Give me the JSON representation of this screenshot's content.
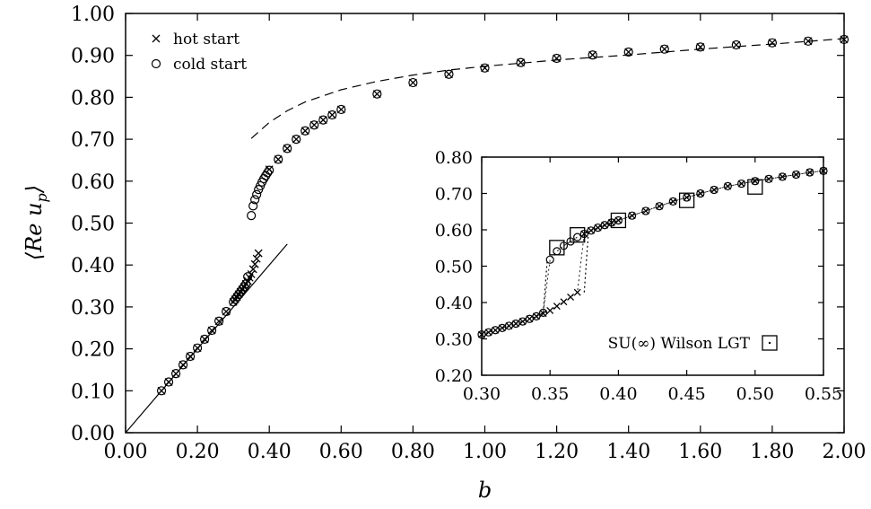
{
  "chart_data": [
    {
      "type": "scatter",
      "title": "",
      "xlabel": "b",
      "ylabel": "⟨Re u_p⟩",
      "ylabel_main": "⟨Re u",
      "ylabel_sub": "p",
      "ylabel_close": "⟩",
      "xlim": [
        0.0,
        2.0
      ],
      "ylim": [
        0.0,
        1.0
      ],
      "xticks": [
        "0.00",
        "0.20",
        "0.40",
        "0.60",
        "0.80",
        "1.00",
        "1.20",
        "1.40",
        "1.60",
        "1.80",
        "2.00"
      ],
      "yticks": [
        "0.00",
        "0.10",
        "0.20",
        "0.30",
        "0.40",
        "0.50",
        "0.60",
        "0.70",
        "0.80",
        "0.90",
        "1.00"
      ],
      "grid": false,
      "legend_position": "top-left",
      "series": [
        {
          "name": "hot start",
          "marker": "x",
          "x": [
            0.1,
            0.12,
            0.14,
            0.16,
            0.18,
            0.2,
            0.22,
            0.24,
            0.26,
            0.28,
            0.3,
            0.305,
            0.31,
            0.315,
            0.32,
            0.325,
            0.33,
            0.335,
            0.34,
            0.345,
            0.35,
            0.355,
            0.36,
            0.365,
            0.37,
            0.4,
            0.425,
            0.45,
            0.475,
            0.5,
            0.525,
            0.55,
            0.575,
            0.6,
            0.7,
            0.8,
            0.9,
            1.0,
            1.1,
            1.2,
            1.3,
            1.4,
            1.5,
            1.6,
            1.7,
            1.8,
            1.9,
            2.0
          ],
          "y": [
            0.1,
            0.121,
            0.141,
            0.162,
            0.182,
            0.202,
            0.223,
            0.244,
            0.266,
            0.289,
            0.312,
            0.318,
            0.324,
            0.33,
            0.336,
            0.342,
            0.348,
            0.355,
            0.362,
            0.37,
            0.378,
            0.39,
            0.402,
            0.415,
            0.428,
            0.628,
            0.652,
            0.678,
            0.7,
            0.72,
            0.734,
            0.746,
            0.758,
            0.771,
            0.808,
            0.835,
            0.855,
            0.87,
            0.883,
            0.893,
            0.901,
            0.908,
            0.915,
            0.92,
            0.925,
            0.93,
            0.934,
            0.938
          ]
        },
        {
          "name": "cold start",
          "marker": "circle",
          "x": [
            0.1,
            0.12,
            0.14,
            0.16,
            0.18,
            0.2,
            0.22,
            0.24,
            0.26,
            0.28,
            0.3,
            0.305,
            0.31,
            0.315,
            0.32,
            0.325,
            0.33,
            0.335,
            0.34,
            0.35,
            0.355,
            0.36,
            0.365,
            0.37,
            0.375,
            0.38,
            0.385,
            0.39,
            0.395,
            0.4,
            0.425,
            0.45,
            0.475,
            0.5,
            0.525,
            0.55,
            0.575,
            0.6,
            0.7,
            0.8,
            0.9,
            1.0,
            1.1,
            1.2,
            1.3,
            1.4,
            1.5,
            1.6,
            1.7,
            1.8,
            1.9,
            2.0
          ],
          "y": [
            0.1,
            0.121,
            0.141,
            0.162,
            0.182,
            0.202,
            0.223,
            0.244,
            0.266,
            0.289,
            0.312,
            0.318,
            0.324,
            0.33,
            0.336,
            0.342,
            0.348,
            0.355,
            0.372,
            0.518,
            0.541,
            0.556,
            0.568,
            0.58,
            0.589,
            0.598,
            0.606,
            0.613,
            0.62,
            0.626,
            0.652,
            0.678,
            0.7,
            0.72,
            0.734,
            0.746,
            0.758,
            0.771,
            0.808,
            0.835,
            0.855,
            0.87,
            0.883,
            0.893,
            0.901,
            0.908,
            0.915,
            0.92,
            0.925,
            0.93,
            0.934,
            0.938
          ]
        }
      ],
      "lines": [
        {
          "style": "dashed",
          "x": [
            0.35,
            0.4,
            0.45,
            0.5,
            0.6,
            0.7,
            0.8,
            0.9,
            1.0,
            1.2,
            1.4,
            1.6,
            1.8,
            2.0
          ],
          "y": [
            0.702,
            0.74,
            0.768,
            0.789,
            0.818,
            0.838,
            0.853,
            0.865,
            0.874,
            0.889,
            0.901,
            0.915,
            0.927,
            0.94
          ]
        },
        {
          "style": "solid",
          "x": [
            0.0,
            0.45
          ],
          "y": [
            0.0,
            0.45
          ]
        }
      ]
    },
    {
      "type": "scatter",
      "title": "",
      "xlim": [
        0.3,
        0.55
      ],
      "ylim": [
        0.2,
        0.8
      ],
      "xticks": [
        "0.30",
        "0.35",
        "0.40",
        "0.45",
        "0.50",
        "0.55"
      ],
      "yticks": [
        "0.20",
        "0.30",
        "0.40",
        "0.50",
        "0.60",
        "0.70",
        "0.80"
      ],
      "legend_position": "bottom-right",
      "legend_label": "SU(∞) Wilson LGT",
      "series": [
        {
          "name": "hot start",
          "marker": "x",
          "x": [
            0.3,
            0.305,
            0.31,
            0.315,
            0.32,
            0.325,
            0.33,
            0.335,
            0.34,
            0.345,
            0.35,
            0.355,
            0.36,
            0.365,
            0.37,
            0.375,
            0.38,
            0.385,
            0.39,
            0.395,
            0.4,
            0.41,
            0.42,
            0.43,
            0.44,
            0.45,
            0.46,
            0.47,
            0.48,
            0.49,
            0.5,
            0.51,
            0.52,
            0.53,
            0.54,
            0.55
          ],
          "y": [
            0.312,
            0.318,
            0.324,
            0.33,
            0.336,
            0.342,
            0.348,
            0.355,
            0.362,
            0.37,
            0.378,
            0.39,
            0.402,
            0.415,
            0.428,
            0.589,
            0.598,
            0.606,
            0.613,
            0.62,
            0.626,
            0.639,
            0.652,
            0.665,
            0.678,
            0.689,
            0.7,
            0.71,
            0.72,
            0.727,
            0.734,
            0.74,
            0.746,
            0.752,
            0.758,
            0.762
          ]
        },
        {
          "name": "cold start",
          "marker": "circle",
          "x": [
            0.3,
            0.305,
            0.31,
            0.315,
            0.32,
            0.325,
            0.33,
            0.335,
            0.34,
            0.345,
            0.35,
            0.355,
            0.36,
            0.365,
            0.37,
            0.375,
            0.38,
            0.385,
            0.39,
            0.395,
            0.4,
            0.41,
            0.42,
            0.43,
            0.44,
            0.45,
            0.46,
            0.47,
            0.48,
            0.49,
            0.5,
            0.51,
            0.52,
            0.53,
            0.54,
            0.55
          ],
          "y": [
            0.312,
            0.318,
            0.324,
            0.33,
            0.336,
            0.342,
            0.348,
            0.355,
            0.362,
            0.372,
            0.518,
            0.541,
            0.556,
            0.568,
            0.58,
            0.589,
            0.598,
            0.606,
            0.613,
            0.62,
            0.626,
            0.639,
            0.652,
            0.665,
            0.678,
            0.689,
            0.7,
            0.71,
            0.72,
            0.727,
            0.734,
            0.74,
            0.746,
            0.752,
            0.758,
            0.762
          ]
        },
        {
          "name": "SU(∞) Wilson LGT",
          "marker": "square",
          "x": [
            0.355,
            0.37,
            0.4,
            0.45,
            0.5
          ],
          "y": [
            0.551,
            0.586,
            0.626,
            0.681,
            0.718
          ]
        }
      ],
      "lines": [
        {
          "style": "dotted",
          "x": [
            0.345,
            0.348
          ],
          "y": [
            0.372,
            0.518
          ]
        },
        {
          "style": "dotted",
          "x": [
            0.375,
            0.378
          ],
          "y": [
            0.428,
            0.589
          ]
        }
      ]
    }
  ]
}
